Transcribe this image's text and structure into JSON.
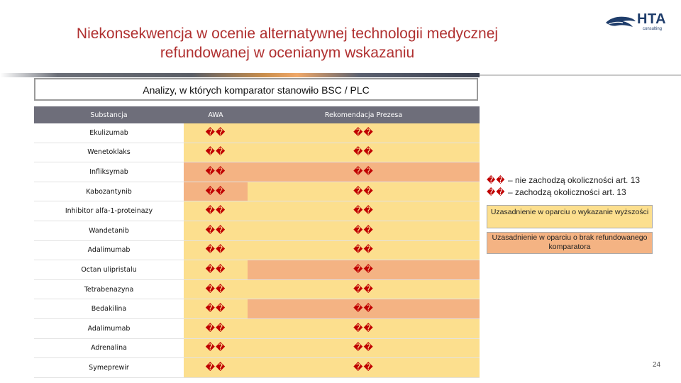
{
  "slide": {
    "title_line1": "Niekonsekwencja w ocenie alternatywnej technologii medycznej",
    "title_line2": "refundowanej w ocenianym wskazaniu",
    "logo_text": "HTA",
    "logo_sub": "consulting",
    "page_number": "24"
  },
  "heading": "Analizy, w których komparator stanowiło BSC / PLC",
  "table": {
    "headers": [
      "Substancja",
      "AWA",
      "Rekomendacja Prezesa"
    ],
    "mark": "��",
    "rows": [
      {
        "name": "Ekulizumab",
        "awa": "y",
        "rek": "y"
      },
      {
        "name": "Wenetoklaks",
        "awa": "y",
        "rek": "y"
      },
      {
        "name": "Infliksymab",
        "awa": "o",
        "rek": "o"
      },
      {
        "name": "Kabozantynib",
        "awa": "o",
        "rek": "y"
      },
      {
        "name": "Inhibitor alfa-1-proteinazy",
        "awa": "y",
        "rek": "y"
      },
      {
        "name": "Wandetanib",
        "awa": "y",
        "rek": "y"
      },
      {
        "name": "Adalimumab",
        "awa": "y",
        "rek": "y"
      },
      {
        "name": "Octan ulipristalu",
        "awa": "y",
        "rek": "o"
      },
      {
        "name": "Tetrabenazyna",
        "awa": "y",
        "rek": "y"
      },
      {
        "name": "Bedakilina",
        "awa": "y",
        "rek": "o"
      },
      {
        "name": "Adalimumab",
        "awa": "y",
        "rek": "y"
      },
      {
        "name": "Adrenalina",
        "awa": "y",
        "rek": "y"
      },
      {
        "name": "Symeprewir",
        "awa": "y",
        "rek": "y"
      }
    ]
  },
  "legend": {
    "line1_symbol": "��",
    "line1_text": "– nie zachodzą okoliczności art. 13",
    "line2_symbol": "��",
    "line2_text": "– zachodzą okoliczności art. 13",
    "box1": "Uzasadnienie w oparciu o wykazanie wyższości",
    "box2": "Uzasadnienie w oparciu o brak refundowanego komparatora"
  },
  "colors": {
    "title": "#b03030",
    "yellow": "#fcdf8e",
    "orange": "#f4b383",
    "mark": "#c00000",
    "header_bg": "#6e6e7a"
  }
}
